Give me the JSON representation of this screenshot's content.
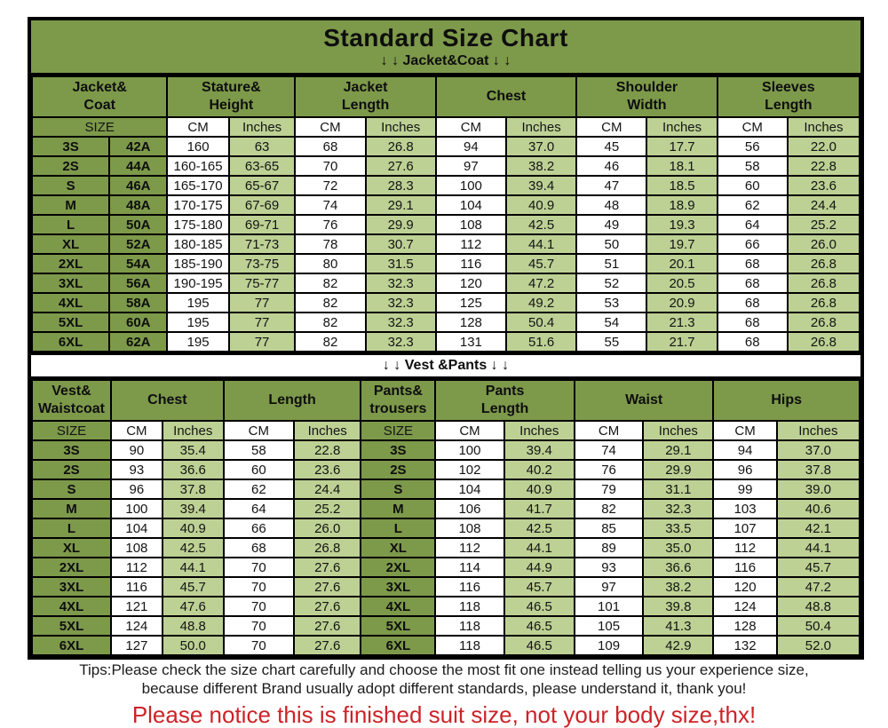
{
  "page": {
    "title": "Standard Size Chart",
    "jacket_banner": "↓ ↓  Jacket&Coat ↓ ↓",
    "vest_banner": "↓ ↓  Vest &Pants ↓ ↓"
  },
  "colors": {
    "medium_green": "#7d994a",
    "light_green": "#bdd194",
    "cell_white": "#ffffff",
    "border_black": "#000000",
    "notice_red": "#cc2328"
  },
  "jacket_table": {
    "group_headers": [
      "Jacket&\nCoat",
      "Stature&\nHeight",
      "Jacket\nLength",
      "Chest",
      "Shoulder\nWidth",
      "Sleeves\nLength"
    ],
    "subheaders": [
      "SIZE",
      "CM",
      "Inches",
      "CM",
      "Inches",
      "CM",
      "Inches",
      "CM",
      "Inches",
      "CM",
      "Inches"
    ],
    "rows": [
      [
        "3S",
        "42A",
        "160",
        "63",
        "68",
        "26.8",
        "94",
        "37.0",
        "45",
        "17.7",
        "56",
        "22.0"
      ],
      [
        "2S",
        "44A",
        "160-165",
        "63-65",
        "70",
        "27.6",
        "97",
        "38.2",
        "46",
        "18.1",
        "58",
        "22.8"
      ],
      [
        "S",
        "46A",
        "165-170",
        "65-67",
        "72",
        "28.3",
        "100",
        "39.4",
        "47",
        "18.5",
        "60",
        "23.6"
      ],
      [
        "M",
        "48A",
        "170-175",
        "67-69",
        "74",
        "29.1",
        "104",
        "40.9",
        "48",
        "18.9",
        "62",
        "24.4"
      ],
      [
        "L",
        "50A",
        "175-180",
        "69-71",
        "76",
        "29.9",
        "108",
        "42.5",
        "49",
        "19.3",
        "64",
        "25.2"
      ],
      [
        "XL",
        "52A",
        "180-185",
        "71-73",
        "78",
        "30.7",
        "112",
        "44.1",
        "50",
        "19.7",
        "66",
        "26.0"
      ],
      [
        "2XL",
        "54A",
        "185-190",
        "73-75",
        "80",
        "31.5",
        "116",
        "45.7",
        "51",
        "20.1",
        "68",
        "26.8"
      ],
      [
        "3XL",
        "56A",
        "190-195",
        "75-77",
        "82",
        "32.3",
        "120",
        "47.2",
        "52",
        "20.5",
        "68",
        "26.8"
      ],
      [
        "4XL",
        "58A",
        "195",
        "77",
        "82",
        "32.3",
        "125",
        "49.2",
        "53",
        "20.9",
        "68",
        "26.8"
      ],
      [
        "5XL",
        "60A",
        "195",
        "77",
        "82",
        "32.3",
        "128",
        "50.4",
        "54",
        "21.3",
        "68",
        "26.8"
      ],
      [
        "6XL",
        "62A",
        "195",
        "77",
        "82",
        "32.3",
        "131",
        "51.6",
        "55",
        "21.7",
        "68",
        "26.8"
      ]
    ]
  },
  "vest_table": {
    "group_headers": [
      "Vest&\nWaistcoat",
      "Chest",
      "Length",
      "Pants&\ntrousers",
      "Pants\nLength",
      "Waist",
      "Hips"
    ],
    "subheaders": [
      "SIZE",
      "CM",
      "Inches",
      "CM",
      "Inches",
      "SIZE",
      "CM",
      "Inches",
      "CM",
      "Inches",
      "CM",
      "Inches"
    ],
    "rows": [
      [
        "3S",
        "90",
        "35.4",
        "58",
        "22.8",
        "3S",
        "100",
        "39.4",
        "74",
        "29.1",
        "94",
        "37.0"
      ],
      [
        "2S",
        "93",
        "36.6",
        "60",
        "23.6",
        "2S",
        "102",
        "40.2",
        "76",
        "29.9",
        "96",
        "37.8"
      ],
      [
        "S",
        "96",
        "37.8",
        "62",
        "24.4",
        "S",
        "104",
        "40.9",
        "79",
        "31.1",
        "99",
        "39.0"
      ],
      [
        "M",
        "100",
        "39.4",
        "64",
        "25.2",
        "M",
        "106",
        "41.7",
        "82",
        "32.3",
        "103",
        "40.6"
      ],
      [
        "L",
        "104",
        "40.9",
        "66",
        "26.0",
        "L",
        "108",
        "42.5",
        "85",
        "33.5",
        "107",
        "42.1"
      ],
      [
        "XL",
        "108",
        "42.5",
        "68",
        "26.8",
        "XL",
        "112",
        "44.1",
        "89",
        "35.0",
        "112",
        "44.1"
      ],
      [
        "2XL",
        "112",
        "44.1",
        "70",
        "27.6",
        "2XL",
        "114",
        "44.9",
        "93",
        "36.6",
        "116",
        "45.7"
      ],
      [
        "3XL",
        "116",
        "45.7",
        "70",
        "27.6",
        "3XL",
        "116",
        "45.7",
        "97",
        "38.2",
        "120",
        "47.2"
      ],
      [
        "4XL",
        "121",
        "47.6",
        "70",
        "27.6",
        "4XL",
        "118",
        "46.5",
        "101",
        "39.8",
        "124",
        "48.8"
      ],
      [
        "5XL",
        "124",
        "48.8",
        "70",
        "27.6",
        "5XL",
        "118",
        "46.5",
        "105",
        "41.3",
        "128",
        "50.4"
      ],
      [
        "6XL",
        "127",
        "50.0",
        "70",
        "27.6",
        "6XL",
        "118",
        "46.5",
        "109",
        "42.9",
        "132",
        "52.0"
      ]
    ]
  },
  "tips": {
    "line1": "Tips:Please check the size chart carefully and choose the most fit one instead telling us your experience size,",
    "line2": "because different Brand usually adopt different standards, please understand it, thank you!",
    "notice": "Please notice this is finished suit size, not your body size,thx!"
  }
}
